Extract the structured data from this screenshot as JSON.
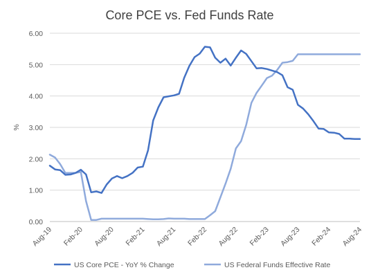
{
  "chart_data": {
    "type": "line",
    "title": "Core PCE vs. Fed Funds Rate",
    "xlabel": "",
    "ylabel": "%",
    "ylim": [
      0,
      6
    ],
    "yticks": [
      "0.00",
      "1.00",
      "2.00",
      "3.00",
      "4.00",
      "5.00",
      "6.00"
    ],
    "xticks": [
      "Aug-19",
      "Feb-20",
      "Aug-20",
      "Feb-21",
      "Aug-21",
      "Feb-22",
      "Aug-22",
      "Feb-23",
      "Aug-23",
      "Feb-24",
      "Aug-24"
    ],
    "grid": true,
    "legend": "bottom",
    "x_start": "Aug-19",
    "x_end": "Aug-24",
    "series": [
      {
        "name": "US Core PCE - YoY % Change",
        "color": "#4472C4",
        "values": [
          1.78,
          1.66,
          1.64,
          1.49,
          1.5,
          1.55,
          1.65,
          1.5,
          0.93,
          0.96,
          0.91,
          1.18,
          1.37,
          1.45,
          1.38,
          1.45,
          1.55,
          1.72,
          1.75,
          2.27,
          3.22,
          3.64,
          3.96,
          3.99,
          4.02,
          4.07,
          4.58,
          4.96,
          5.24,
          5.35,
          5.57,
          5.55,
          5.22,
          5.06,
          5.19,
          4.97,
          5.22,
          5.45,
          5.34,
          5.11,
          4.88,
          4.89,
          4.86,
          4.81,
          4.76,
          4.66,
          4.28,
          4.2,
          3.72,
          3.6,
          3.42,
          3.2,
          2.96,
          2.95,
          2.84,
          2.83,
          2.79,
          2.64,
          2.64,
          2.63,
          2.63
        ]
      },
      {
        "name": "US Federal Funds Effective Rate",
        "color": "#8FAADC",
        "values": [
          2.13,
          2.04,
          1.83,
          1.55,
          1.55,
          1.55,
          1.58,
          0.65,
          0.05,
          0.05,
          0.09,
          0.09,
          0.09,
          0.09,
          0.09,
          0.09,
          0.09,
          0.09,
          0.09,
          0.08,
          0.07,
          0.07,
          0.08,
          0.1,
          0.09,
          0.09,
          0.09,
          0.08,
          0.08,
          0.08,
          0.08,
          0.2,
          0.33,
          0.77,
          1.21,
          1.68,
          2.33,
          2.56,
          3.08,
          3.78,
          4.1,
          4.33,
          4.57,
          4.65,
          4.83,
          5.06,
          5.08,
          5.12,
          5.33,
          5.33,
          5.33,
          5.33,
          5.33,
          5.33,
          5.33,
          5.33,
          5.33,
          5.33,
          5.33,
          5.33,
          5.33
        ]
      }
    ]
  }
}
